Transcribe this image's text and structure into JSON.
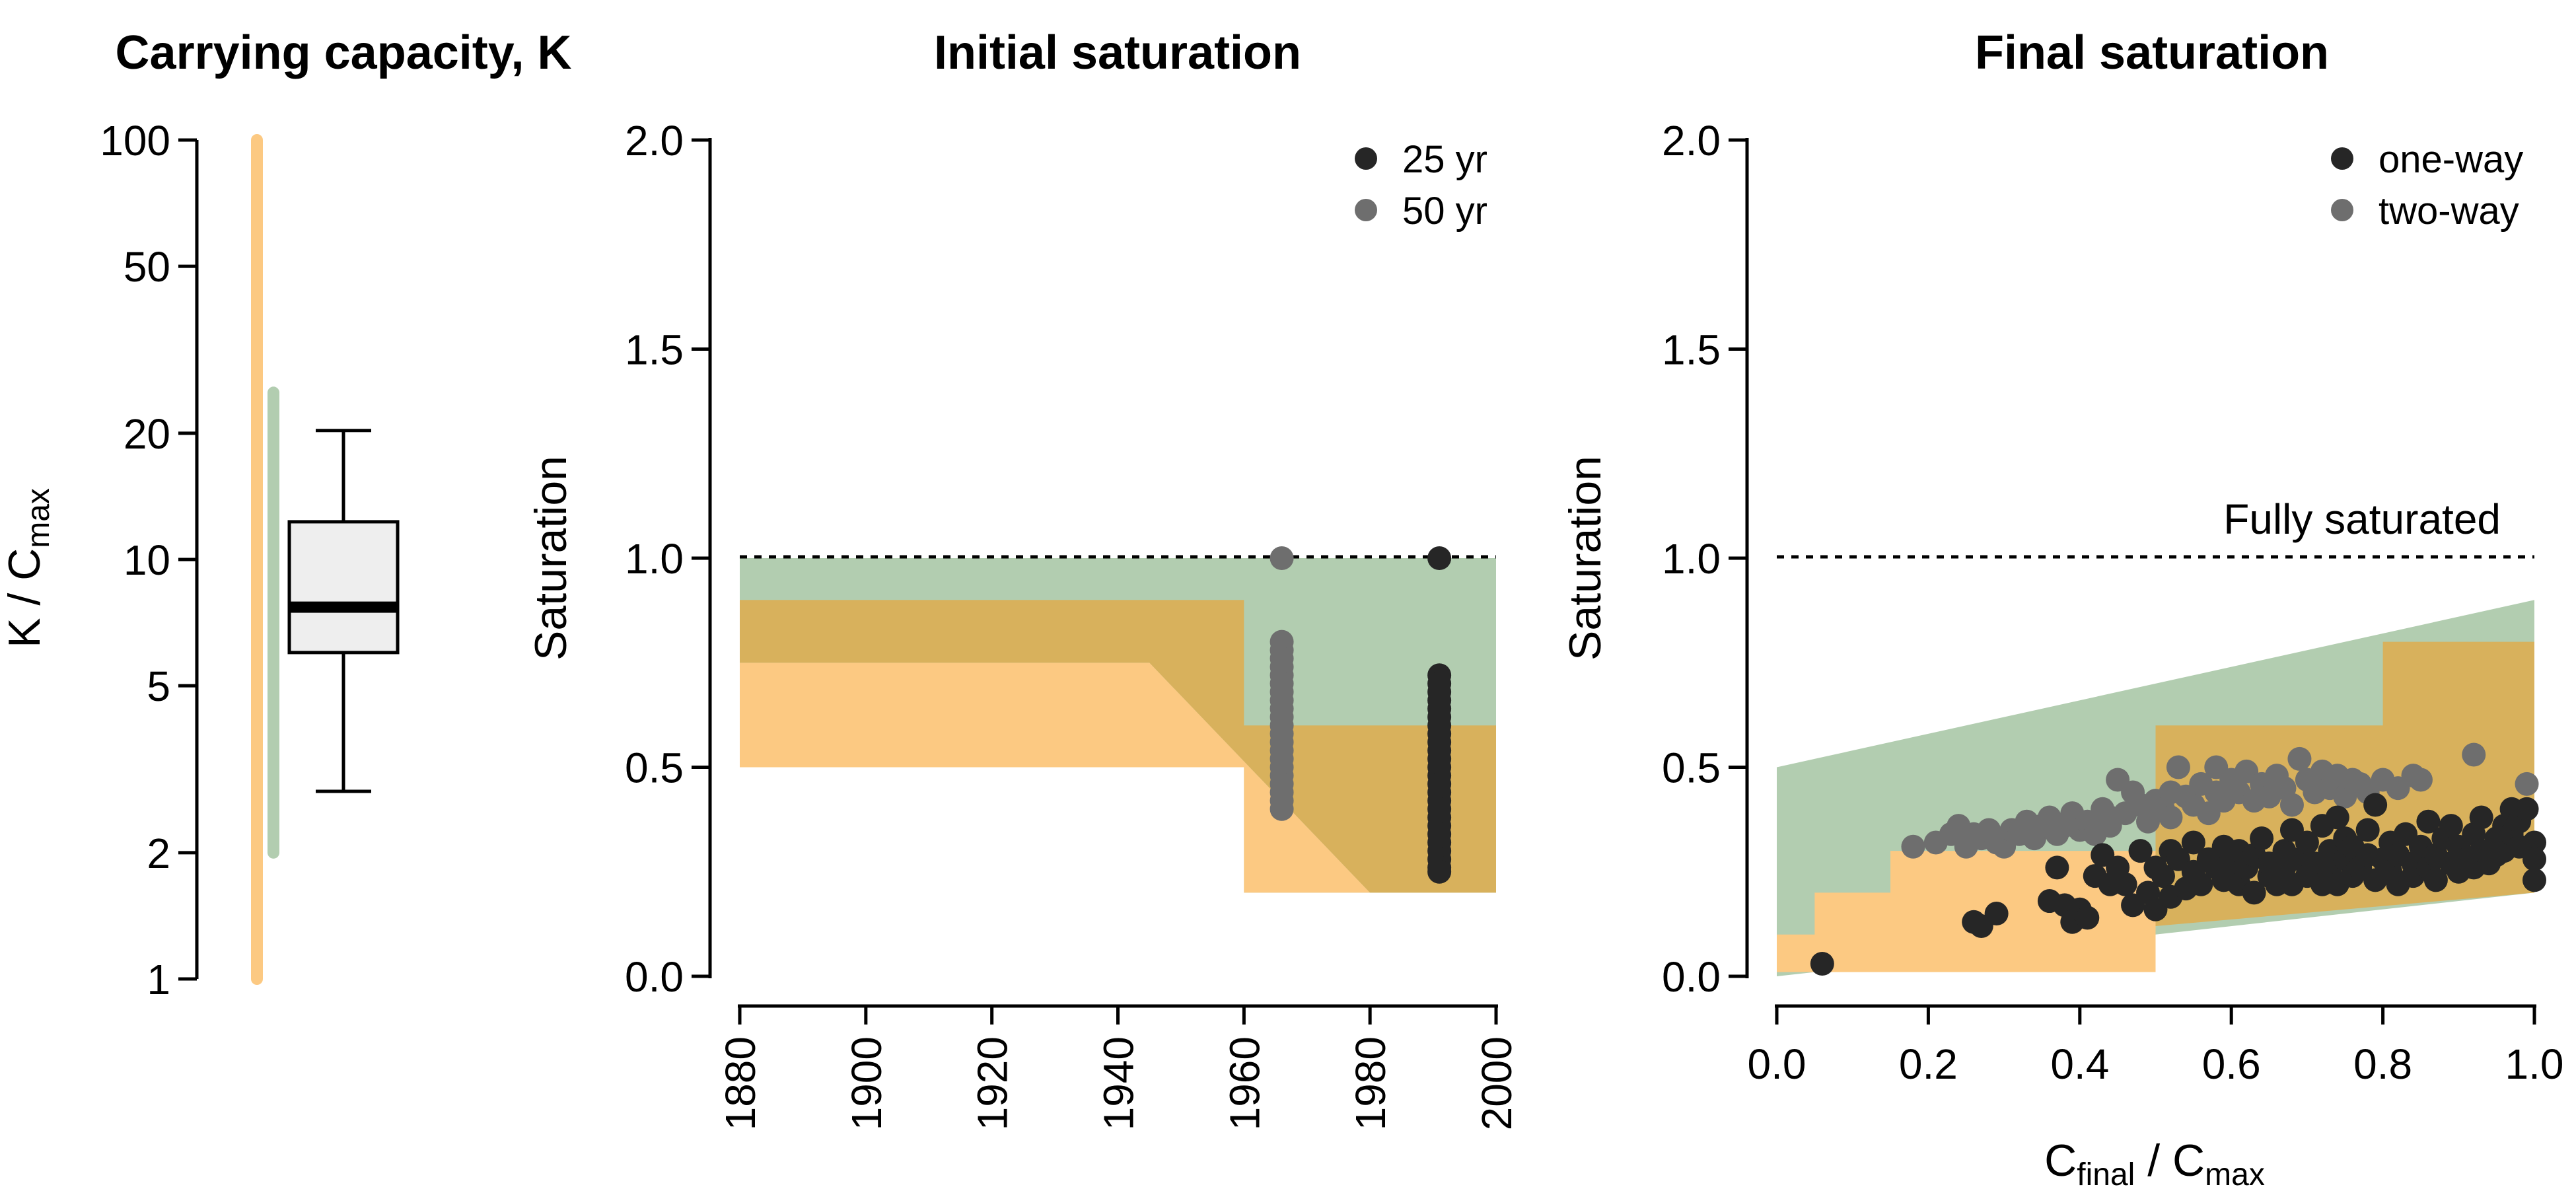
{
  "colors": {
    "orange": "#FCC982",
    "green": "#B2CDB0",
    "gold": "#D8B15C",
    "black_pts": "#262626",
    "gray_pts": "#6E6E6E",
    "box_fill": "#EEEEEE"
  },
  "panels": {
    "capacity": {
      "title": "Carrying capacity, K",
      "ylabel_main": "K / C",
      "ylabel_sub": "max",
      "yticks": [
        "1",
        "2",
        "5",
        "10",
        "20",
        "50",
        "100"
      ]
    },
    "initial": {
      "title": "Initial saturation",
      "ylabel": "Saturation",
      "yticks": [
        "0.0",
        "0.5",
        "1.0",
        "1.5",
        "2.0"
      ],
      "xticks": [
        "1880",
        "1900",
        "1920",
        "1940",
        "1960",
        "1980",
        "2000"
      ],
      "legend": [
        "25 yr",
        "50 yr"
      ]
    },
    "final": {
      "title": "Final saturation",
      "ylabel": "Saturation",
      "yticks": [
        "0.0",
        "0.5",
        "1.0",
        "1.5",
        "2.0"
      ],
      "xticks": [
        "0.0",
        "0.2",
        "0.4",
        "0.6",
        "0.8",
        "1.0"
      ],
      "xlabel_a": "C",
      "xlabel_a_sub": "final",
      "xlabel_b": " / C",
      "xlabel_b_sub": "max",
      "legend": [
        "one-way",
        "two-way"
      ],
      "annotation": "Fully saturated"
    }
  },
  "chart_data": [
    {
      "type": "box",
      "title": "Carrying capacity, K",
      "ylabel": "K / Cmax",
      "yscale": "log",
      "ylim": [
        1,
        100
      ],
      "ranges": [
        {
          "color": "orange",
          "min": 1,
          "max": 100
        },
        {
          "color": "green",
          "min": 2,
          "max": 25
        }
      ],
      "box": {
        "whisker_low": 2.8,
        "q1": 6,
        "median": 7.7,
        "q3": 12.3,
        "whisker_high": 20.3
      }
    },
    {
      "type": "scatter",
      "title": "Initial saturation",
      "ylabel": "Saturation",
      "xlim": [
        1880,
        2000
      ],
      "ylim": [
        0,
        2
      ],
      "reference_line": 1.0,
      "shaded_regions": [
        {
          "color": "green",
          "points": [
            [
              1880,
              0.5
            ],
            [
              1880,
              1.0
            ],
            [
              2000,
              1.0
            ],
            [
              2000,
              0.2
            ],
            [
              1960,
              0.2
            ],
            [
              1960,
              0.5
            ]
          ]
        },
        {
          "color": "orange",
          "points": [
            [
              1880,
              0.5
            ],
            [
              1880,
              0.75
            ],
            [
              1945,
              0.75
            ],
            [
              1980,
              0.2
            ],
            [
              1960,
              0.2
            ],
            [
              1960,
              0.5
            ]
          ]
        },
        {
          "color": "gold",
          "points": [
            [
              1880,
              0.9
            ],
            [
              1960,
              0.9
            ],
            [
              1960,
              0.6
            ],
            [
              2000,
              0.6
            ],
            [
              2000,
              0.2
            ],
            [
              1980,
              0.2
            ],
            [
              1945,
              0.75
            ],
            [
              1880,
              0.75
            ]
          ]
        }
      ],
      "series": [
        {
          "name": "25 yr",
          "color": "black_pts",
          "x": 1991,
          "y": [
            1.0,
            0.72,
            0.7,
            0.68,
            0.66,
            0.64,
            0.62,
            0.6,
            0.58,
            0.56,
            0.54,
            0.52,
            0.5,
            0.48,
            0.46,
            0.44,
            0.42,
            0.4,
            0.38,
            0.36,
            0.34,
            0.32,
            0.3,
            0.28,
            0.26,
            0.25
          ]
        },
        {
          "name": "50 yr",
          "color": "gray_pts",
          "x": 1966,
          "y": [
            1.0,
            0.8,
            0.78,
            0.76,
            0.74,
            0.72,
            0.7,
            0.68,
            0.66,
            0.64,
            0.62,
            0.6,
            0.58,
            0.56,
            0.54,
            0.52,
            0.5,
            0.48,
            0.46,
            0.44,
            0.42,
            0.4
          ]
        }
      ]
    },
    {
      "type": "scatter",
      "title": "Final saturation",
      "xlabel": "Cfinal / Cmax",
      "ylabel": "Saturation",
      "xlim": [
        0,
        1
      ],
      "ylim": [
        0,
        2
      ],
      "reference_line": 1.0,
      "shaded_regions": [
        {
          "color": "green",
          "points": [
            [
              0,
              0.0
            ],
            [
              0,
              0.5
            ],
            [
              1,
              0.9
            ],
            [
              1,
              0.2
            ]
          ]
        },
        {
          "color": "orange",
          "points": [
            [
              0,
              0.01
            ],
            [
              0,
              0.1
            ],
            [
              0.05,
              0.1
            ],
            [
              0.05,
              0.2
            ],
            [
              0.15,
              0.2
            ],
            [
              0.15,
              0.3
            ],
            [
              0.5,
              0.3
            ],
            [
              0.5,
              0.01
            ]
          ]
        },
        {
          "color": "gold",
          "points": [
            [
              0,
              0.0
            ],
            [
              0,
              0.1
            ],
            [
              0.05,
              0.1
            ],
            [
              0.05,
              0.2
            ],
            [
              0.15,
              0.2
            ],
            [
              0.15,
              0.3
            ],
            [
              0.5,
              0.3
            ],
            [
              0.5,
              0.6
            ],
            [
              0.8,
              0.6
            ],
            [
              0.8,
              0.8
            ],
            [
              1,
              0.8
            ],
            [
              1,
              0.2
            ],
            [
              0.5,
              0.12
            ],
            [
              0.5,
              0.3
            ],
            [
              0.15,
              0.3
            ],
            [
              0.15,
              0.2
            ],
            [
              0.05,
              0.2
            ],
            [
              0.05,
              0.1
            ],
            [
              0,
              0.1
            ]
          ]
        }
      ],
      "series": [
        {
          "name": "one-way",
          "color": "black_pts",
          "points": [
            [
              0.06,
              0.03
            ],
            [
              0.26,
              0.13
            ],
            [
              0.27,
              0.12
            ],
            [
              0.29,
              0.15
            ],
            [
              0.36,
              0.18
            ],
            [
              0.37,
              0.26
            ],
            [
              0.38,
              0.17
            ],
            [
              0.39,
              0.13
            ],
            [
              0.4,
              0.16
            ],
            [
              0.41,
              0.14
            ],
            [
              0.42,
              0.24
            ],
            [
              0.43,
              0.29
            ],
            [
              0.44,
              0.22
            ],
            [
              0.45,
              0.26
            ],
            [
              0.46,
              0.22
            ],
            [
              0.47,
              0.17
            ],
            [
              0.48,
              0.3
            ],
            [
              0.49,
              0.2
            ],
            [
              0.5,
              0.16
            ],
            [
              0.5,
              0.26
            ],
            [
              0.51,
              0.24
            ],
            [
              0.52,
              0.19
            ],
            [
              0.52,
              0.3
            ],
            [
              0.53,
              0.28
            ],
            [
              0.54,
              0.21
            ],
            [
              0.55,
              0.25
            ],
            [
              0.55,
              0.32
            ],
            [
              0.56,
              0.22
            ],
            [
              0.57,
              0.28
            ],
            [
              0.58,
              0.26
            ],
            [
              0.59,
              0.23
            ],
            [
              0.59,
              0.31
            ],
            [
              0.6,
              0.27
            ],
            [
              0.61,
              0.22
            ],
            [
              0.61,
              0.3
            ],
            [
              0.62,
              0.26
            ],
            [
              0.63,
              0.2
            ],
            [
              0.63,
              0.29
            ],
            [
              0.64,
              0.33
            ],
            [
              0.65,
              0.24
            ],
            [
              0.65,
              0.27
            ],
            [
              0.66,
              0.22
            ],
            [
              0.67,
              0.3
            ],
            [
              0.67,
              0.26
            ],
            [
              0.68,
              0.35
            ],
            [
              0.68,
              0.22
            ],
            [
              0.69,
              0.28
            ],
            [
              0.7,
              0.24
            ],
            [
              0.7,
              0.32
            ],
            [
              0.71,
              0.27
            ],
            [
              0.72,
              0.22
            ],
            [
              0.72,
              0.36
            ],
            [
              0.73,
              0.3
            ],
            [
              0.73,
              0.25
            ],
            [
              0.74,
              0.38
            ],
            [
              0.74,
              0.22
            ],
            [
              0.75,
              0.28
            ],
            [
              0.75,
              0.33
            ],
            [
              0.76,
              0.24
            ],
            [
              0.76,
              0.31
            ],
            [
              0.77,
              0.26
            ],
            [
              0.78,
              0.29
            ],
            [
              0.78,
              0.35
            ],
            [
              0.79,
              0.23
            ],
            [
              0.79,
              0.41
            ],
            [
              0.8,
              0.28
            ],
            [
              0.81,
              0.25
            ],
            [
              0.81,
              0.32
            ],
            [
              0.82,
              0.29
            ],
            [
              0.82,
              0.22
            ],
            [
              0.83,
              0.34
            ],
            [
              0.84,
              0.27
            ],
            [
              0.84,
              0.24
            ],
            [
              0.85,
              0.31
            ],
            [
              0.86,
              0.26
            ],
            [
              0.86,
              0.37
            ],
            [
              0.87,
              0.29
            ],
            [
              0.87,
              0.23
            ],
            [
              0.88,
              0.33
            ],
            [
              0.89,
              0.27
            ],
            [
              0.89,
              0.36
            ],
            [
              0.9,
              0.25
            ],
            [
              0.9,
              0.31
            ],
            [
              0.91,
              0.28
            ],
            [
              0.92,
              0.34
            ],
            [
              0.92,
              0.26
            ],
            [
              0.93,
              0.3
            ],
            [
              0.93,
              0.38
            ],
            [
              0.94,
              0.27
            ],
            [
              0.95,
              0.33
            ],
            [
              0.95,
              0.29
            ],
            [
              0.96,
              0.36
            ],
            [
              0.96,
              0.3
            ],
            [
              0.97,
              0.34
            ],
            [
              0.97,
              0.4
            ],
            [
              0.98,
              0.37
            ],
            [
              0.98,
              0.31
            ],
            [
              0.99,
              0.4
            ],
            [
              1.0,
              0.32
            ],
            [
              1.0,
              0.28
            ],
            [
              1.0,
              0.23
            ]
          ]
        },
        {
          "name": "two-way",
          "color": "gray_pts",
          "points": [
            [
              0.18,
              0.31
            ],
            [
              0.21,
              0.32
            ],
            [
              0.23,
              0.34
            ],
            [
              0.24,
              0.36
            ],
            [
              0.25,
              0.31
            ],
            [
              0.26,
              0.34
            ],
            [
              0.27,
              0.33
            ],
            [
              0.28,
              0.35
            ],
            [
              0.29,
              0.32
            ],
            [
              0.3,
              0.31
            ],
            [
              0.31,
              0.35
            ],
            [
              0.32,
              0.34
            ],
            [
              0.33,
              0.37
            ],
            [
              0.34,
              0.33
            ],
            [
              0.35,
              0.36
            ],
            [
              0.36,
              0.38
            ],
            [
              0.37,
              0.34
            ],
            [
              0.38,
              0.36
            ],
            [
              0.39,
              0.39
            ],
            [
              0.4,
              0.35
            ],
            [
              0.41,
              0.37
            ],
            [
              0.42,
              0.34
            ],
            [
              0.43,
              0.4
            ],
            [
              0.44,
              0.38
            ],
            [
              0.44,
              0.36
            ],
            [
              0.45,
              0.47
            ],
            [
              0.46,
              0.39
            ],
            [
              0.47,
              0.44
            ],
            [
              0.48,
              0.41
            ],
            [
              0.49,
              0.37
            ],
            [
              0.5,
              0.42
            ],
            [
              0.51,
              0.4
            ],
            [
              0.52,
              0.44
            ],
            [
              0.52,
              0.38
            ],
            [
              0.53,
              0.5
            ],
            [
              0.54,
              0.43
            ],
            [
              0.55,
              0.41
            ],
            [
              0.56,
              0.46
            ],
            [
              0.57,
              0.39
            ],
            [
              0.58,
              0.44
            ],
            [
              0.58,
              0.5
            ],
            [
              0.59,
              0.42
            ],
            [
              0.6,
              0.47
            ],
            [
              0.61,
              0.44
            ],
            [
              0.62,
              0.49
            ],
            [
              0.63,
              0.42
            ],
            [
              0.64,
              0.46
            ],
            [
              0.65,
              0.43
            ],
            [
              0.66,
              0.48
            ],
            [
              0.67,
              0.45
            ],
            [
              0.68,
              0.41
            ],
            [
              0.69,
              0.52
            ],
            [
              0.7,
              0.47
            ],
            [
              0.71,
              0.44
            ],
            [
              0.72,
              0.49
            ],
            [
              0.73,
              0.45
            ],
            [
              0.74,
              0.48
            ],
            [
              0.75,
              0.43
            ],
            [
              0.76,
              0.47
            ],
            [
              0.77,
              0.46
            ],
            [
              0.78,
              0.44
            ],
            [
              0.8,
              0.47
            ],
            [
              0.82,
              0.45
            ],
            [
              0.84,
              0.48
            ],
            [
              0.85,
              0.47
            ],
            [
              0.92,
              0.53
            ],
            [
              0.99,
              0.46
            ]
          ]
        }
      ]
    }
  ]
}
